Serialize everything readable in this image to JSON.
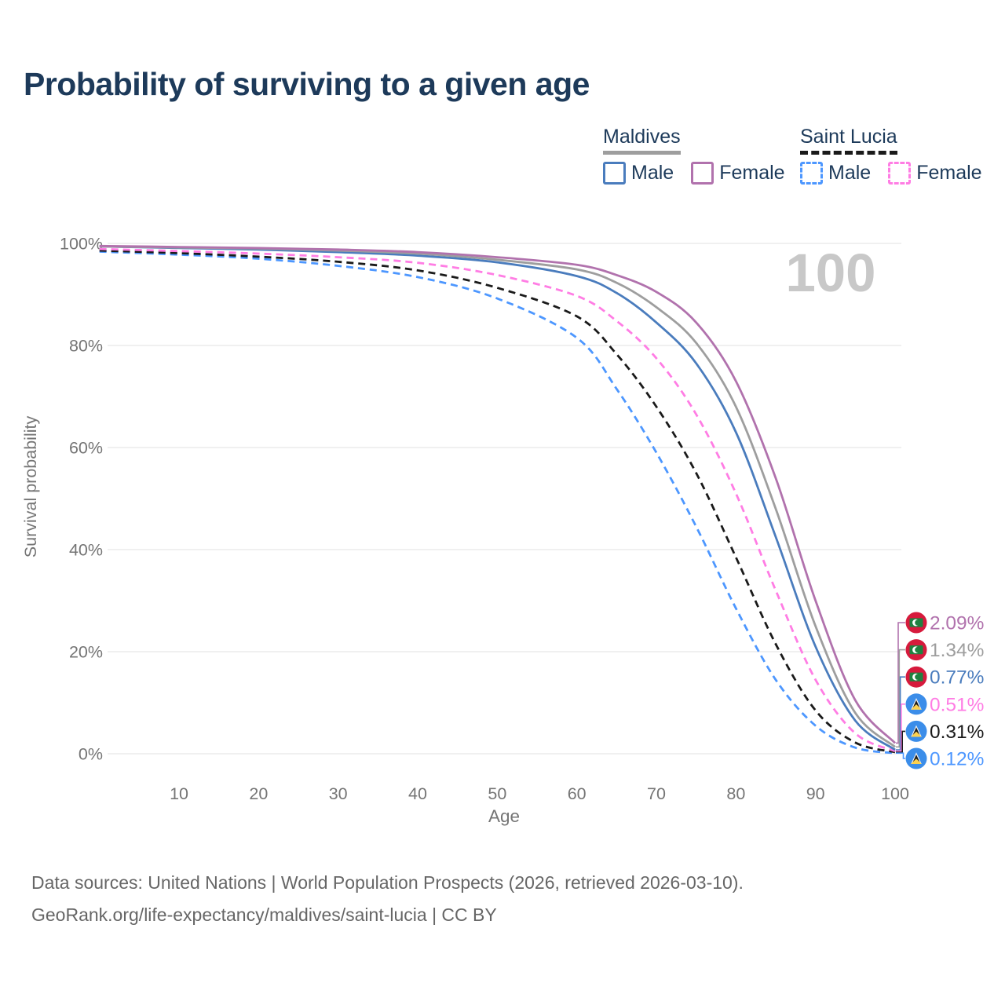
{
  "header": {
    "title": "Probability of surviving to a given age"
  },
  "legend": {
    "position": "top-right",
    "groups": [
      {
        "country": "Maldives",
        "line_style": "solid",
        "line_color": "#9e9e9e",
        "items": [
          {
            "label": "Male",
            "color": "#4a7cbd"
          },
          {
            "label": "Female",
            "color": "#b172ad"
          }
        ]
      },
      {
        "country": "Saint Lucia",
        "line_style": "dashed",
        "line_color": "#1a1a1a",
        "items": [
          {
            "label": "Male",
            "color": "#4d97ff"
          },
          {
            "label": "Female",
            "color": "#ff7de4"
          }
        ]
      }
    ]
  },
  "chart_data": {
    "type": "line",
    "title": "Probability of surviving to a given age",
    "xlabel": "Age",
    "ylabel": "Survival probability",
    "watermark": "100",
    "xlim": [
      0,
      100
    ],
    "ylim": [
      0,
      100
    ],
    "grid": "horizontal",
    "x_ticks": [
      10,
      20,
      30,
      40,
      50,
      60,
      70,
      80,
      90,
      100
    ],
    "y_ticks": [
      0,
      20,
      40,
      60,
      80,
      100
    ],
    "y_tick_suffix": "%",
    "x": [
      0,
      10,
      20,
      30,
      40,
      50,
      60,
      65,
      70,
      75,
      80,
      85,
      90,
      95,
      100
    ],
    "series": [
      {
        "name": "Maldives Female",
        "country": "Maldives",
        "sex": "Female",
        "style": "solid",
        "color": "#b172ad",
        "end_label": "2.09%",
        "end_value": 2.09,
        "values": [
          99.5,
          99.3,
          99.1,
          98.8,
          98.3,
          97.3,
          95.8,
          93.8,
          90.5,
          84.5,
          73,
          54,
          30,
          10.5,
          2.09
        ]
      },
      {
        "name": "Maldives Both sexes",
        "country": "Maldives",
        "sex": "Both",
        "style": "solid",
        "color": "#9e9e9e",
        "end_label": "1.34%",
        "end_value": 1.34,
        "values": [
          99.4,
          99.2,
          99.0,
          98.6,
          98.0,
          96.8,
          94.9,
          92.3,
          87.5,
          80.5,
          68,
          48,
          25,
          8,
          1.34
        ]
      },
      {
        "name": "Maldives Male",
        "country": "Maldives",
        "sex": "Male",
        "style": "solid",
        "color": "#4a7cbd",
        "end_label": "0.77%",
        "end_value": 0.77,
        "values": [
          99.4,
          99.1,
          98.8,
          98.3,
          97.6,
          96.3,
          93.6,
          90.3,
          84.5,
          76.5,
          63,
          42.5,
          21,
          6.5,
          0.77
        ]
      },
      {
        "name": "Saint Lucia Female",
        "country": "Saint Lucia",
        "sex": "Female",
        "style": "dashed",
        "color": "#ff7de4",
        "end_label": "0.51%",
        "end_value": 0.51,
        "values": [
          98.9,
          98.5,
          98.0,
          97.3,
          96.2,
          93.8,
          89.7,
          84.8,
          77.5,
          66.5,
          51,
          32,
          14.5,
          4,
          0.51
        ]
      },
      {
        "name": "Saint Lucia Both sexes",
        "country": "Saint Lucia",
        "sex": "Both",
        "style": "dashed",
        "color": "#1a1a1a",
        "end_label": "0.31%",
        "end_value": 0.31,
        "values": [
          98.6,
          98.1,
          97.4,
          96.4,
          94.7,
          91.3,
          85.7,
          78.3,
          68,
          55,
          38.5,
          21.5,
          8.5,
          2.2,
          0.31
        ]
      },
      {
        "name": "Saint Lucia Male",
        "country": "Saint Lucia",
        "sex": "Male",
        "style": "dashed",
        "color": "#4d97ff",
        "end_label": "0.12%",
        "end_value": 0.12,
        "values": [
          98.4,
          97.8,
          97.0,
          95.6,
          93.4,
          89.2,
          81.5,
          71.5,
          59,
          44.5,
          28.5,
          14.5,
          5.5,
          1.2,
          0.12
        ]
      }
    ]
  },
  "flags": {
    "maldives": {
      "bg": "#d61a3c",
      "rect": "#1f8140",
      "crescent": "#ffffff"
    },
    "saint_lucia": {
      "bg": "#3b8de9",
      "outer": "#f2f2f2",
      "inner": "#1b1b1b",
      "yellow": "#fcd14f"
    }
  },
  "footer": {
    "line1": "Data sources: United Nations | World Population Prospects (2026, retrieved 2026-03-10).",
    "line2": "GeoRank.org/life-expectancy/maldives/saint-lucia | CC BY"
  },
  "colors": {
    "title": "#1d3a5a",
    "axis_text": "#757575",
    "gridline": "#e8e8e8",
    "watermark": "#c8c8c8",
    "footer_text": "#666666"
  }
}
